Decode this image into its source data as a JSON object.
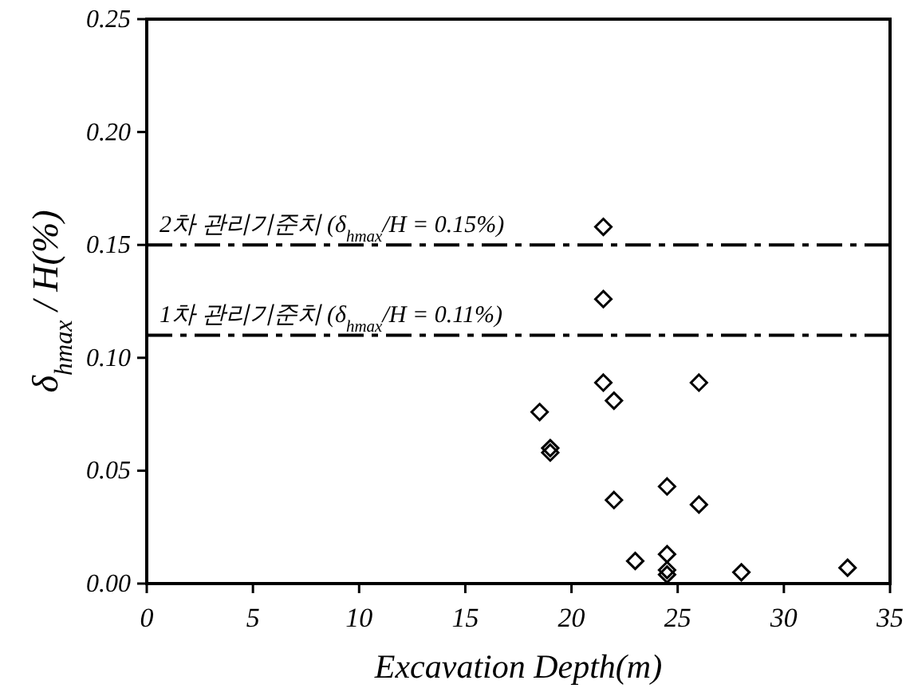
{
  "chart_data": {
    "type": "scatter",
    "xlabel": "Excavation Depth(m)",
    "ylabel": "δ$_{hmax}$ / H(%)",
    "x": [
      21.5,
      21.5,
      21.5,
      22,
      26,
      18.5,
      19,
      19,
      22,
      24.5,
      26,
      23,
      24.5,
      24.5,
      24.5,
      28,
      33
    ],
    "values": [
      0.158,
      0.126,
      0.089,
      0.081,
      0.089,
      0.076,
      0.06,
      0.058,
      0.037,
      0.043,
      0.035,
      0.01,
      0.013,
      0.006,
      0.004,
      0.005,
      0.007
    ],
    "color": "#000000",
    "marker": "diamond",
    "grid": false,
    "xlim": [
      0,
      35
    ],
    "xticks": [
      0,
      5,
      10,
      15,
      20,
      25,
      30,
      35
    ],
    "ylim": [
      0,
      0.25
    ],
    "yticks": [
      {
        "value": 0,
        "label": "0.00"
      },
      {
        "value": 0.05,
        "label": "0.05"
      },
      {
        "value": 0.1,
        "label": "0.10"
      },
      {
        "value": 0.15,
        "label": "0.15"
      },
      {
        "value": 0.2,
        "label": "0.20"
      },
      {
        "value": 0.25,
        "label": "0.25"
      }
    ],
    "ref_lines": [
      {
        "axis": "y",
        "value": 0.15,
        "label": "2차 관리기준치 (δ$_{hmax}$/H = 0.15%)",
        "color": "#000000",
        "line_style": "dashed"
      },
      {
        "axis": "y",
        "value": 0.11,
        "label": "1차 관리기준치 (δ$_{hmax}$/H = 0.11%)",
        "color": "#000000",
        "line_style": "dashed"
      }
    ]
  }
}
